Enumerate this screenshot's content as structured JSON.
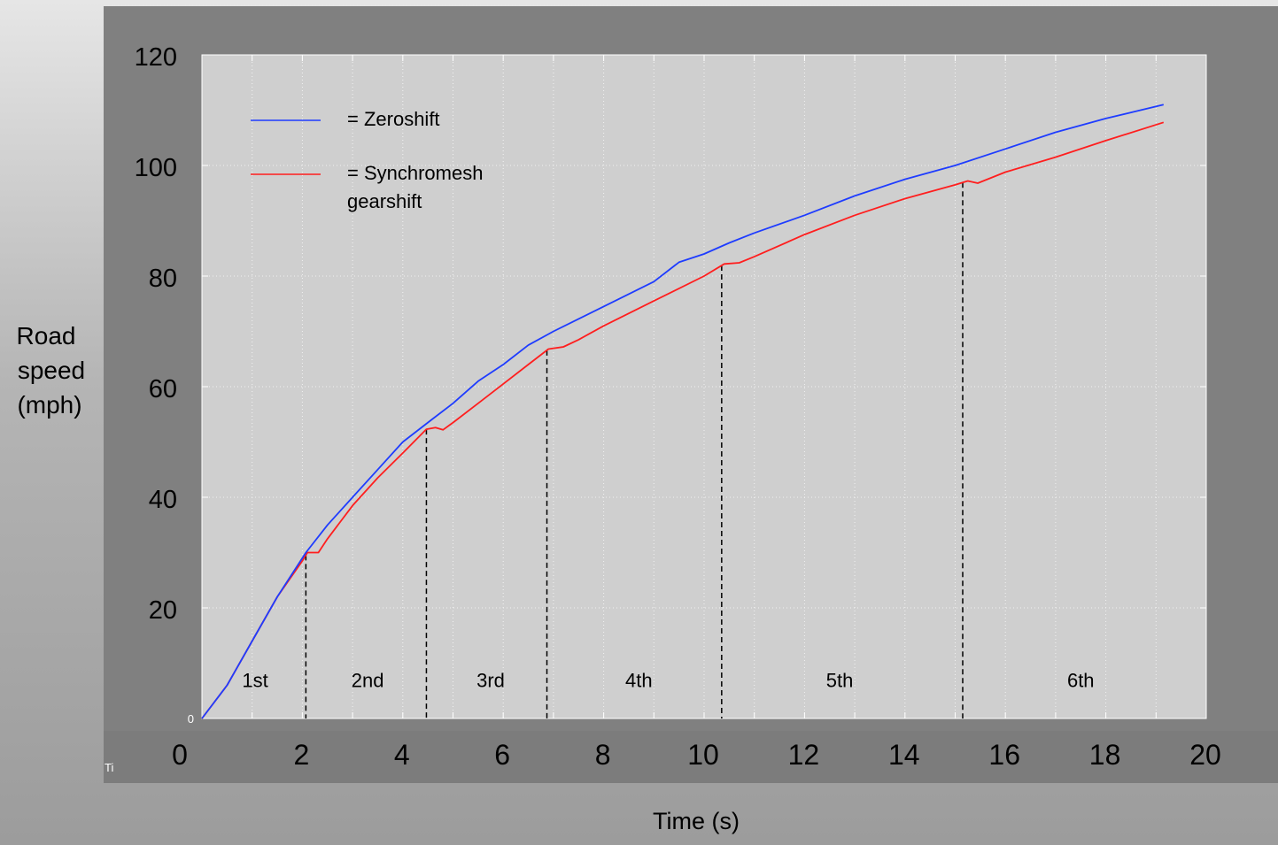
{
  "chart_data": {
    "type": "line",
    "xlabel": "Time (s)",
    "ylabel_lines": [
      "Road",
      "speed",
      "(mph)"
    ],
    "xlim": [
      0,
      20
    ],
    "ylim": [
      0,
      120
    ],
    "x_ticks": [
      0,
      2,
      4,
      6,
      8,
      10,
      12,
      14,
      16,
      18,
      20
    ],
    "y_ticks": [
      20,
      40,
      60,
      80,
      100,
      120
    ],
    "y_zero_label": "0",
    "corner_label": "Ti",
    "grid": true,
    "legend_position": "top-left",
    "series": [
      {
        "name": "= Zeroshift",
        "color": "#1e3cff",
        "points": [
          [
            0,
            0
          ],
          [
            0.5,
            6
          ],
          [
            1,
            14
          ],
          [
            1.5,
            22
          ],
          [
            2.07,
            30
          ],
          [
            2.5,
            35
          ],
          [
            3,
            40
          ],
          [
            3.5,
            45
          ],
          [
            4,
            50
          ],
          [
            4.57,
            54
          ],
          [
            5,
            57
          ],
          [
            5.5,
            61
          ],
          [
            6,
            64
          ],
          [
            6.5,
            67.5
          ],
          [
            7,
            70
          ],
          [
            8,
            74.5
          ],
          [
            9,
            79
          ],
          [
            9.5,
            82.5
          ],
          [
            10,
            84
          ],
          [
            10.5,
            86
          ],
          [
            11,
            87.8
          ],
          [
            12,
            91
          ],
          [
            13,
            94.5
          ],
          [
            14,
            97.5
          ],
          [
            15,
            100
          ],
          [
            16,
            103
          ],
          [
            17,
            106
          ],
          [
            18,
            108.5
          ],
          [
            19.15,
            111
          ]
        ]
      },
      {
        "name": "= Synchromesh gearshift",
        "color": "#ff1e1e",
        "points": [
          [
            0,
            0
          ],
          [
            0.5,
            6
          ],
          [
            1,
            14
          ],
          [
            1.5,
            22
          ],
          [
            2.0,
            28.5
          ],
          [
            2.1,
            30
          ],
          [
            2.32,
            30
          ],
          [
            2.5,
            32.5
          ],
          [
            3,
            38.5
          ],
          [
            3.5,
            43.5
          ],
          [
            4,
            48
          ],
          [
            4.47,
            52.3
          ],
          [
            4.65,
            52.6
          ],
          [
            4.8,
            52.2
          ],
          [
            5,
            53.5
          ],
          [
            5.5,
            57
          ],
          [
            6,
            60.5
          ],
          [
            6.5,
            64
          ],
          [
            6.9,
            66.8
          ],
          [
            7.2,
            67.2
          ],
          [
            7.5,
            68.5
          ],
          [
            8,
            71
          ],
          [
            9,
            75.5
          ],
          [
            10,
            80
          ],
          [
            10.4,
            82.2
          ],
          [
            10.7,
            82.4
          ],
          [
            11,
            83.5
          ],
          [
            12,
            87.5
          ],
          [
            13,
            91
          ],
          [
            14,
            94
          ],
          [
            15,
            96.5
          ],
          [
            15.25,
            97.2
          ],
          [
            15.45,
            96.8
          ],
          [
            16,
            98.8
          ],
          [
            17,
            101.5
          ],
          [
            18,
            104.5
          ],
          [
            19.15,
            107.8
          ]
        ]
      }
    ],
    "gear_change_times": [
      2.07,
      4.47,
      6.87,
      10.35,
      15.15
    ],
    "gear_labels": [
      {
        "text": "1st",
        "x": 1.06
      },
      {
        "text": "2nd",
        "x": 3.3
      },
      {
        "text": "3rd",
        "x": 5.75
      },
      {
        "text": "4th",
        "x": 8.7
      },
      {
        "text": "5th",
        "x": 12.7
      },
      {
        "text": "6th",
        "x": 17.5
      }
    ],
    "gear_label_y": 7
  }
}
